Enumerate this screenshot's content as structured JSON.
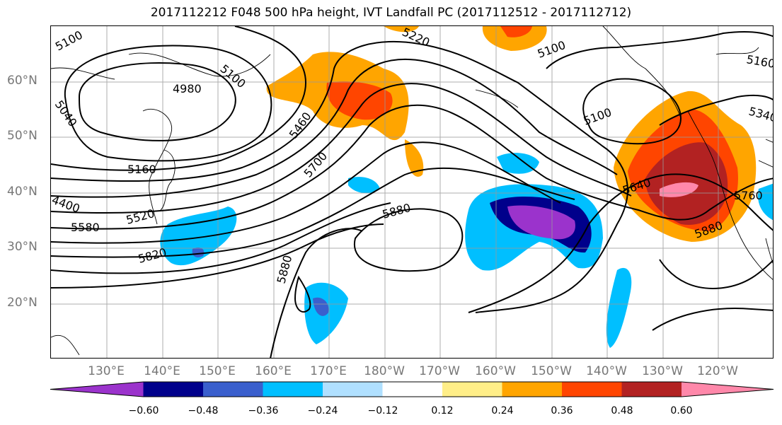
{
  "title": "2017112212 F048 500 hPa height, IVT Landfall PC (2017112512 - 2017112712)",
  "lat_labels": [
    "60°N",
    "50°N",
    "40°N",
    "30°N",
    "20°N"
  ],
  "lon_labels": [
    "130°E",
    "140°E",
    "150°E",
    "160°E",
    "170°E",
    "180°W",
    "170°W",
    "160°W",
    "150°W",
    "140°W",
    "130°W",
    "120°W"
  ],
  "contour_labels": [
    "5100",
    "5040",
    "4980",
    "5100",
    "5220",
    "5100",
    "5160",
    "5340",
    "5460",
    "5100",
    "5160",
    "5700",
    "5640",
    "5760",
    "5880",
    "5880",
    "5880",
    "5580",
    "5520",
    "5820",
    "4400",
    "5580"
  ],
  "colorbar": {
    "colors": [
      "#9b33cc",
      "#00008b",
      "#3a5fcd",
      "#00bfff",
      "#b0e0ff",
      "#ffffff",
      "#ffee88",
      "#ffa500",
      "#ff4500",
      "#b22222",
      "#ff88aa"
    ],
    "ticks": [
      "−0.60",
      "−0.48",
      "−0.36",
      "−0.24",
      "−0.12",
      "0.12",
      "0.24",
      "0.36",
      "0.48",
      "0.60"
    ]
  }
}
